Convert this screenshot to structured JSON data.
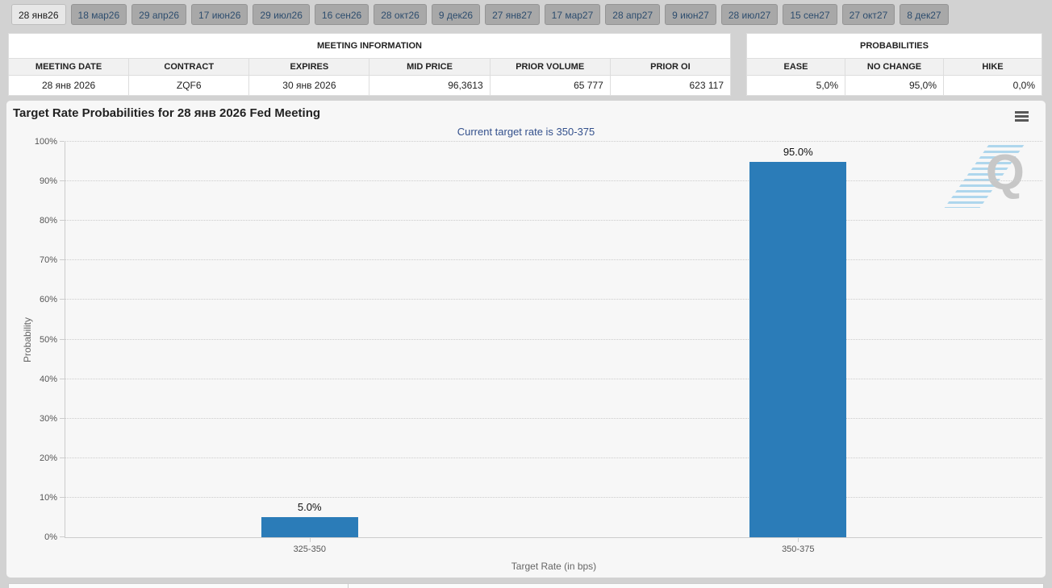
{
  "tab_bar": {
    "tabs": [
      {
        "label": "28 янв26",
        "active": true
      },
      {
        "label": "18 мар26",
        "active": false
      },
      {
        "label": "29 апр26",
        "active": false
      },
      {
        "label": "17 июн26",
        "active": false
      },
      {
        "label": "29 июл26",
        "active": false
      },
      {
        "label": "16 сен26",
        "active": false
      },
      {
        "label": "28 окт26",
        "active": false
      },
      {
        "label": "9 дек26",
        "active": false
      },
      {
        "label": "27 янв27",
        "active": false
      },
      {
        "label": "17 мар27",
        "active": false
      },
      {
        "label": "28 апр27",
        "active": false
      },
      {
        "label": "9 июн27",
        "active": false
      },
      {
        "label": "28 июл27",
        "active": false
      },
      {
        "label": "15 сен27",
        "active": false
      },
      {
        "label": "27 окт27",
        "active": false
      },
      {
        "label": "8 дек27",
        "active": false
      }
    ]
  },
  "meeting_info": {
    "title": "MEETING INFORMATION",
    "columns": [
      "MEETING DATE",
      "CONTRACT",
      "EXPIRES",
      "MID PRICE",
      "PRIOR VOLUME",
      "PRIOR OI"
    ],
    "row": [
      "28 янв 2026",
      "ZQF6",
      "30 янв 2026",
      "96,3613",
      "65 777",
      "623 117"
    ]
  },
  "probabilities": {
    "title": "PROBABILITIES",
    "columns": [
      "EASE",
      "NO CHANGE",
      "HIKE"
    ],
    "row": [
      "5,0%",
      "95,0%",
      "0,0%"
    ]
  },
  "chart_data": {
    "type": "bar",
    "title": "Target Rate Probabilities for 28 янв 2026 Fed Meeting",
    "subtitle": "Current target rate is 350-375",
    "categories": [
      "325-350",
      "350-375"
    ],
    "values": [
      5.0,
      95.0
    ],
    "data_labels": [
      "5.0%",
      "95.0%"
    ],
    "xlabel": "Target Rate (in bps)",
    "ylabel": "Probability",
    "ylim": [
      0,
      100
    ],
    "ytick_step": 10,
    "ytick_suffix": "%",
    "grid": "dotted horizontal",
    "legend": "none",
    "bar_color": "#2b7cb8",
    "subtitle_color": "#33508c",
    "watermark_letter": "Q",
    "menu_icon": "hamburger-menu"
  }
}
